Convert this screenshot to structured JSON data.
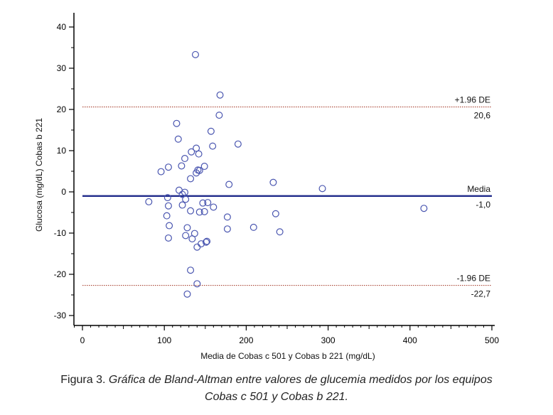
{
  "chart_data": {
    "type": "scatter",
    "xlabel": "Media de Cobas c 501 y Cobas b 221 (mg/dL)",
    "ylabel": "Glucosa (mg/dL) Cobas b 221",
    "xlim": [
      -10,
      505
    ],
    "ylim": [
      -32,
      44
    ],
    "x_ticks": [
      0,
      100,
      200,
      300,
      400,
      500
    ],
    "y_ticks": [
      -30,
      -20,
      -10,
      0,
      10,
      20,
      30,
      40
    ],
    "grid": false,
    "marker": "open-circle",
    "colors": {
      "points": "#4a56b0",
      "mean_line": "#1f2a8a",
      "limit_lines": "#a0301e"
    },
    "reference_lines": [
      {
        "key": "upper",
        "y": 20.6,
        "label_top": "+1.96  DE",
        "label_bottom": "20,6",
        "style": "dotted"
      },
      {
        "key": "mean",
        "y": -1.0,
        "label_top": "Media",
        "label_bottom": "-1,0",
        "style": "solid"
      },
      {
        "key": "lower",
        "y": -22.7,
        "label_top": "-1.96  DE",
        "label_bottom": "-22,7",
        "style": "dotted"
      }
    ],
    "points": [
      [
        138,
        33.3
      ],
      [
        168,
        23.5
      ],
      [
        167,
        18.6
      ],
      [
        115,
        16.6
      ],
      [
        157,
        14.7
      ],
      [
        117,
        12.8
      ],
      [
        190,
        11.6
      ],
      [
        159,
        11.1
      ],
      [
        139,
        10.6
      ],
      [
        133,
        9.7
      ],
      [
        142,
        9.2
      ],
      [
        125,
        8.1
      ],
      [
        149,
        6.2
      ],
      [
        105,
        6.0
      ],
      [
        121,
        6.3
      ],
      [
        96,
        4.9
      ],
      [
        141,
        5.3
      ],
      [
        139,
        4.6
      ],
      [
        143,
        5.2
      ],
      [
        132,
        3.2
      ],
      [
        179,
        1.8
      ],
      [
        233,
        2.3
      ],
      [
        293,
        0.8
      ],
      [
        118,
        0.4
      ],
      [
        125,
        -0.1
      ],
      [
        122,
        -0.6
      ],
      [
        104,
        -1.4
      ],
      [
        126,
        -1.8
      ],
      [
        81,
        -2.4
      ],
      [
        122,
        -3.2
      ],
      [
        105,
        -3.4
      ],
      [
        147,
        -2.7
      ],
      [
        153,
        -2.6
      ],
      [
        160,
        -3.7
      ],
      [
        132,
        -4.6
      ],
      [
        143,
        -4.9
      ],
      [
        149,
        -4.8
      ],
      [
        417,
        -4.0
      ],
      [
        236,
        -5.3
      ],
      [
        103,
        -5.8
      ],
      [
        177,
        -6.1
      ],
      [
        106,
        -8.2
      ],
      [
        128,
        -8.7
      ],
      [
        177,
        -9.0
      ],
      [
        209,
        -8.6
      ],
      [
        241,
        -9.7
      ],
      [
        137,
        -10.1
      ],
      [
        126,
        -10.6
      ],
      [
        105,
        -11.2
      ],
      [
        134,
        -11.4
      ],
      [
        151,
        -12.2
      ],
      [
        145,
        -12.6
      ],
      [
        152,
        -12.0
      ],
      [
        140,
        -13.4
      ],
      [
        132,
        -19.0
      ],
      [
        140,
        -22.3
      ],
      [
        128,
        -24.8
      ]
    ]
  },
  "caption": {
    "prefix": "Figura 3. ",
    "line1": "Gráfica de Bland-Altman entre valores de glucemia medidos por los equipos",
    "line2": "Cobas c 501 y Cobas b 221."
  }
}
